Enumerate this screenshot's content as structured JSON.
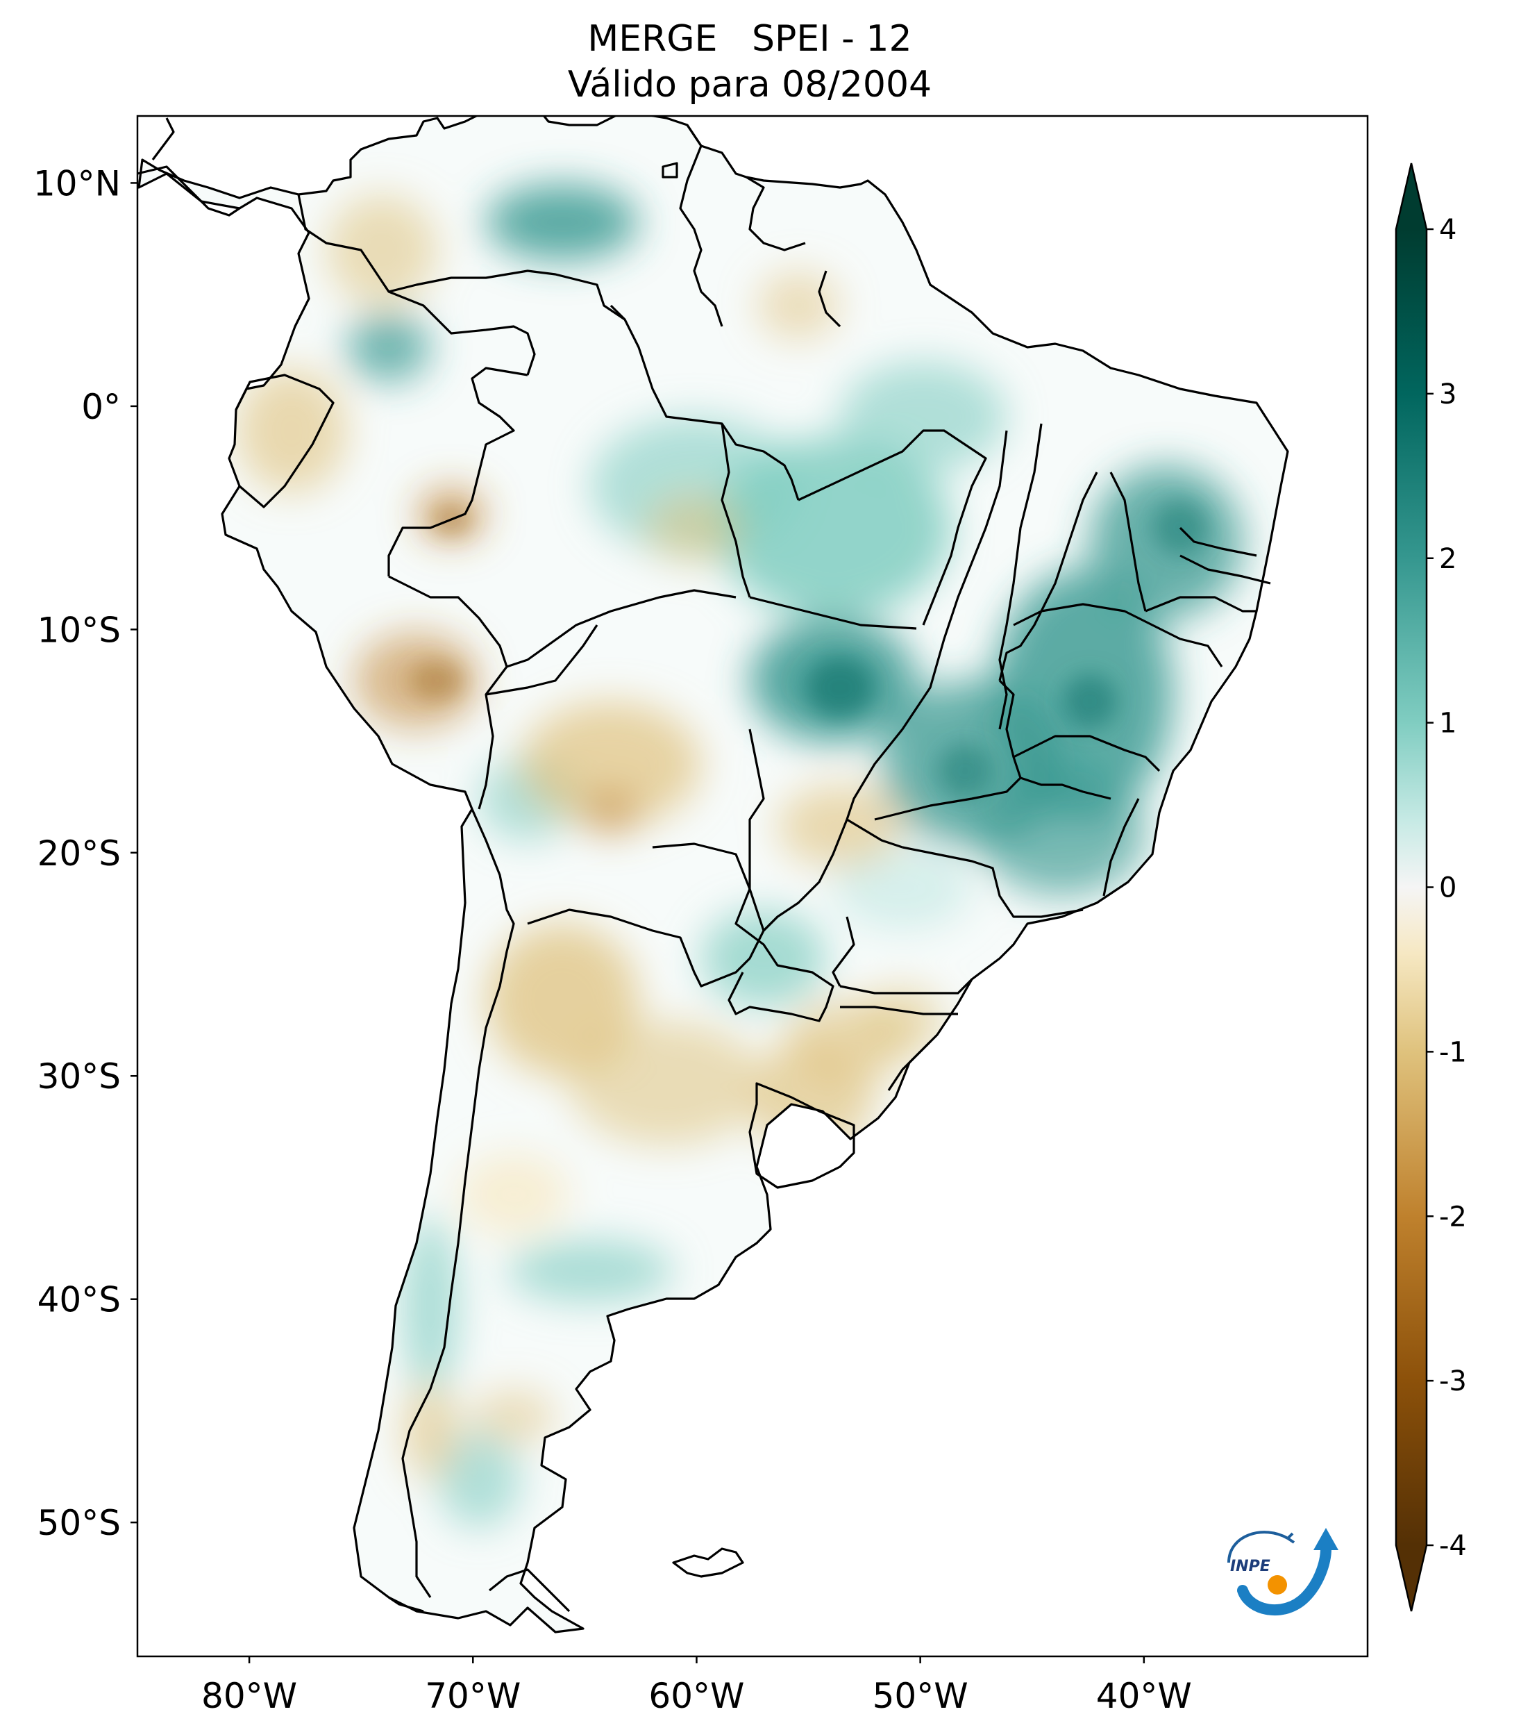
{
  "title": {
    "line1": "MERGE   SPEI - 12",
    "line2": "Válido para 08/2004"
  },
  "map": {
    "lon_range": [
      -85,
      -30
    ],
    "lat_range": [
      -56,
      13
    ],
    "lat_ticks": [
      {
        "value": 10,
        "label": "10°N"
      },
      {
        "value": 0,
        "label": "0°"
      },
      {
        "value": -10,
        "label": "10°S"
      },
      {
        "value": -20,
        "label": "20°S"
      },
      {
        "value": -30,
        "label": "30°S"
      },
      {
        "value": -40,
        "label": "40°S"
      },
      {
        "value": -50,
        "label": "50°S"
      }
    ],
    "lon_ticks": [
      {
        "value": -80,
        "label": "80°W"
      },
      {
        "value": -70,
        "label": "70°W"
      },
      {
        "value": -60,
        "label": "60°W"
      },
      {
        "value": -50,
        "label": "50°W"
      },
      {
        "value": -40,
        "label": "40°W"
      }
    ]
  },
  "colorbar": {
    "range": [
      -4,
      4
    ],
    "extend": "both",
    "ticks": [
      "4",
      "3",
      "2",
      "1",
      "0",
      "-1",
      "-2",
      "-3",
      "-4"
    ],
    "colors": {
      "dry_extreme": "#543005",
      "dry_strong": "#8c510a",
      "dry_moderate": "#bf812d",
      "dry_mild": "#dfc27d",
      "dry_weak": "#f6e8c3",
      "neutral": "#ffffff",
      "wet_weak": "#c7eae5",
      "wet_mild": "#80cdc1",
      "wet_moderate": "#35978f",
      "wet_strong": "#01665e",
      "wet_extreme": "#003c30"
    }
  },
  "logo": {
    "text": "INPE"
  }
}
